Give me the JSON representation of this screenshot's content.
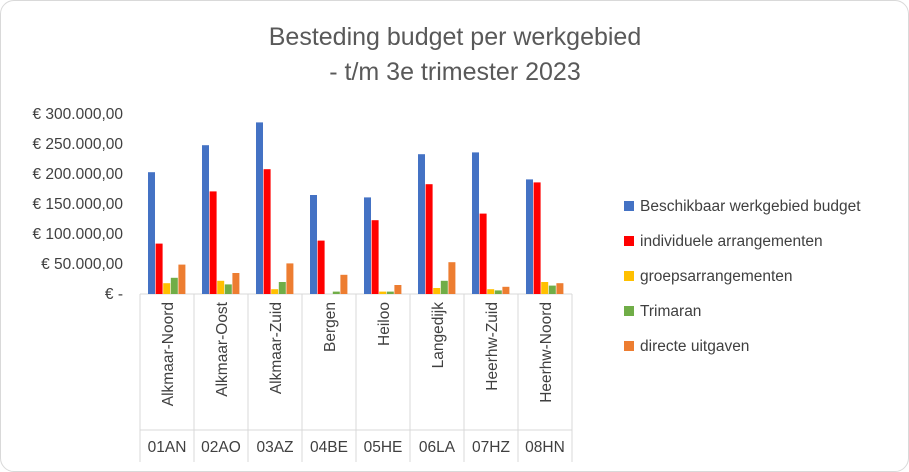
{
  "chart_data": {
    "type": "bar",
    "title_lines": [
      "Besteding budget per werkgebied",
      "- t/m 3e trimester 2023"
    ],
    "categories": [
      "Alkmaar-Noord",
      "Alkmaar-Oost",
      "Alkmaar-Zuid",
      "Bergen",
      "Heiloo",
      "Langedijk",
      "Heerhw-Zuid",
      "Heerhw-Noord"
    ],
    "codes": [
      "01AN",
      "02AO",
      "03AZ",
      "04BE",
      "05HE",
      "06LA",
      "07HZ",
      "08HN"
    ],
    "ylim": [
      0,
      300000
    ],
    "yticks": [
      0,
      50000,
      100000,
      150000,
      200000,
      250000,
      300000
    ],
    "ytick_labels": [
      "€ -",
      "€ 50.000,00",
      "€ 100.000,00",
      "€ 150.000,00",
      "€ 200.000,00",
      "€ 250.000,00",
      "€ 300.000,00"
    ],
    "legend_position": "right",
    "grid": false,
    "series": [
      {
        "name": "Beschikbaar werkgebied budget",
        "color": "#4472C4",
        "values": [
          203000,
          248000,
          286000,
          165000,
          161000,
          233000,
          236000,
          191000
        ]
      },
      {
        "name": "individuele arrangementen",
        "color": "#FF0000",
        "values": [
          84000,
          171000,
          208000,
          89000,
          123000,
          183000,
          134000,
          186000
        ]
      },
      {
        "name": "groepsarrangementen",
        "color": "#FFC000",
        "values": [
          18000,
          22000,
          8000,
          0,
          4000,
          10000,
          8000,
          20000
        ]
      },
      {
        "name": "Trimaran",
        "color": "#70AD47",
        "values": [
          27000,
          16000,
          20000,
          4000,
          4000,
          22000,
          6000,
          14000
        ]
      },
      {
        "name": "directe uitgaven",
        "color": "#ED7D31",
        "values": [
          49000,
          35000,
          51000,
          32000,
          15000,
          53000,
          12000,
          18000
        ]
      }
    ]
  }
}
